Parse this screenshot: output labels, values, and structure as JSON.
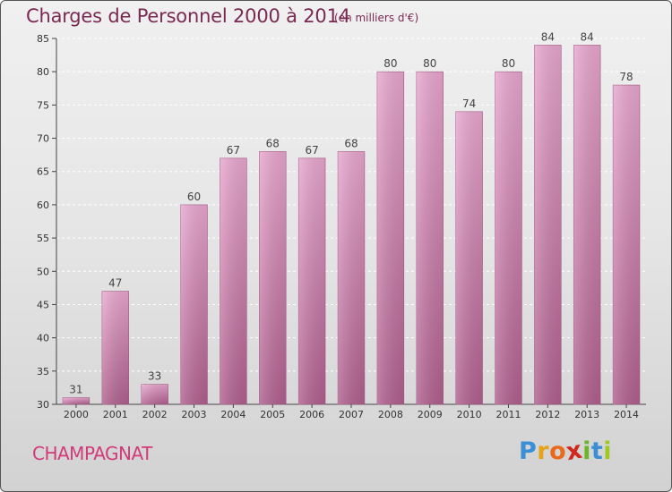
{
  "title": "Charges de Personnel 2000 à 2014",
  "unit": "(en milliers d'€)",
  "commune": "CHAMPAGNAT",
  "logo": {
    "letters": [
      "P",
      "r",
      "o",
      "x",
      "i",
      "t",
      "i"
    ],
    "colors": [
      "#3a8fd6",
      "#e8a21a",
      "#e86a1a",
      "#d0281e",
      "#6cb52a",
      "#3a8fd6",
      "#a0c820"
    ]
  },
  "colors": {
    "bar_top": "#e8a7cf",
    "bar_bottom": "#b0608e",
    "title": "#7a2a52",
    "commune": "#d23a7a"
  },
  "chart_data": {
    "type": "bar",
    "title": "Charges de Personnel 2000 à 2014",
    "xlabel": "",
    "ylabel": "",
    "ylim": [
      30,
      85
    ],
    "yticks": [
      30,
      35,
      40,
      45,
      50,
      55,
      60,
      65,
      70,
      75,
      80,
      85
    ],
    "grid": true,
    "categories": [
      "2000",
      "2001",
      "2002",
      "2003",
      "2004",
      "2005",
      "2006",
      "2007",
      "2008",
      "2009",
      "2010",
      "2011",
      "2012",
      "2013",
      "2014"
    ],
    "values": [
      31,
      47,
      33,
      60,
      67,
      68,
      67,
      68,
      80,
      80,
      74,
      80,
      84,
      84,
      78
    ]
  }
}
